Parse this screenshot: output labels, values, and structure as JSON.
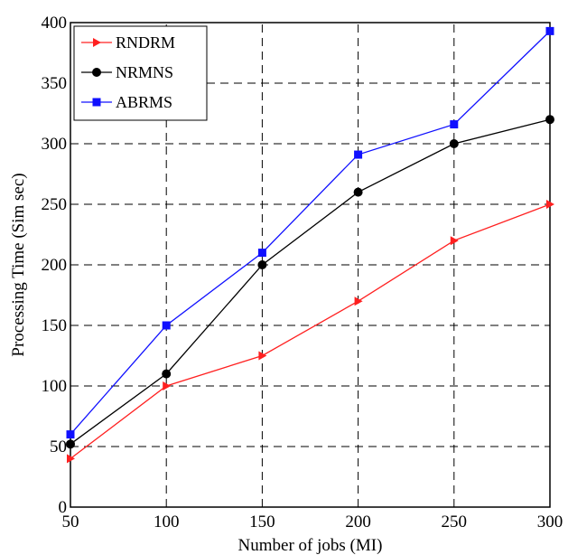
{
  "chart_data": {
    "type": "line",
    "title": "",
    "xlabel": "Number of jobs (MI)",
    "ylabel": "Processing Time (Sim sec)",
    "x": [
      50,
      100,
      150,
      200,
      250,
      300
    ],
    "xlim": [
      50,
      300
    ],
    "ylim": [
      0,
      400
    ],
    "xticks": [
      "50",
      "100",
      "150",
      "200",
      "250",
      "300"
    ],
    "yticks": [
      "0",
      "50",
      "100",
      "150",
      "200",
      "250",
      "300",
      "350",
      "400"
    ],
    "grid": true,
    "legend_position": "top-left",
    "series": [
      {
        "name": "RNDRM",
        "color": "#ff2020",
        "marker": "triangle-right",
        "values": [
          40,
          100,
          125,
          170,
          220,
          250
        ]
      },
      {
        "name": "NRMNS",
        "color": "#000000",
        "marker": "circle",
        "values": [
          52,
          110,
          200,
          260,
          300,
          320
        ]
      },
      {
        "name": "ABRMS",
        "color": "#1010ff",
        "marker": "square",
        "values": [
          60,
          150,
          210,
          291,
          316,
          393
        ]
      }
    ]
  }
}
